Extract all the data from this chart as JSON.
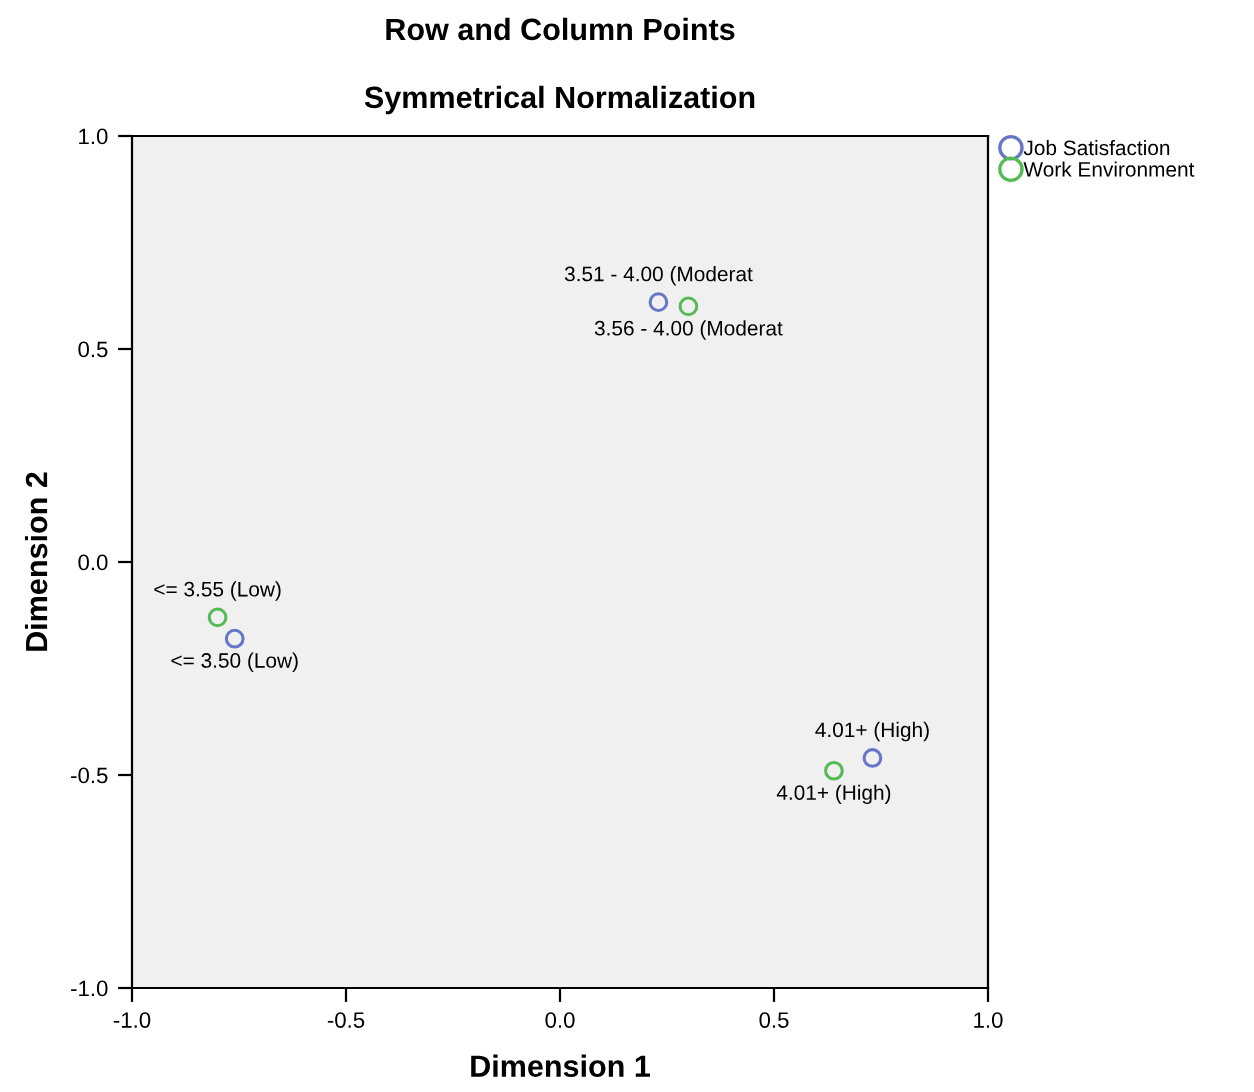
{
  "chart_data": {
    "type": "scatter",
    "title": "Row and Column Points",
    "subtitle": "Symmetrical Normalization",
    "xlabel": "Dimension 1",
    "ylabel": "Dimension 2",
    "xlim": [
      -1.0,
      1.0
    ],
    "ylim": [
      -1.0,
      1.0
    ],
    "xticks": [
      {
        "value": -1.0,
        "label": "-1.0"
      },
      {
        "value": -0.5,
        "label": "-0.5"
      },
      {
        "value": 0.0,
        "label": "0.0"
      },
      {
        "value": 0.5,
        "label": "0.5"
      },
      {
        "value": 1.0,
        "label": "1.0"
      }
    ],
    "yticks": [
      {
        "value": -1.0,
        "label": "-1.0"
      },
      {
        "value": -0.5,
        "label": "-0.5"
      },
      {
        "value": 0.0,
        "label": "0.0"
      },
      {
        "value": 0.5,
        "label": "0.5"
      },
      {
        "value": 1.0,
        "label": "1.0"
      }
    ],
    "marker": "circle",
    "grid": false,
    "legend": "top right",
    "series": [
      {
        "name": "Job Satisfaction",
        "color": "#6677c8",
        "x": [
          0.23,
          -0.76,
          0.73
        ],
        "values": [
          0.61,
          -0.18,
          -0.46
        ]
      },
      {
        "name": "Work Environment",
        "color": "#55bb55",
        "x": [
          0.3,
          -0.8,
          0.64
        ],
        "values": [
          0.6,
          -0.13,
          -0.49
        ]
      }
    ],
    "annotations": [
      {
        "text": "3.51 - 4.00 (Moderat",
        "x": 0.23,
        "y": 0.61
      },
      {
        "text": "<= 3.50 (Low)",
        "x": -0.76,
        "y": -0.18
      },
      {
        "text": "4.01+ (High)",
        "x": 0.73,
        "y": -0.46
      },
      {
        "text": "3.56 - 4.00 (Moderat",
        "x": 0.3,
        "y": 0.6
      },
      {
        "text": "<= 3.55 (Low)",
        "x": -0.8,
        "y": -0.13
      },
      {
        "text": "4.01+ (High)",
        "x": 0.64,
        "y": -0.49
      }
    ]
  }
}
